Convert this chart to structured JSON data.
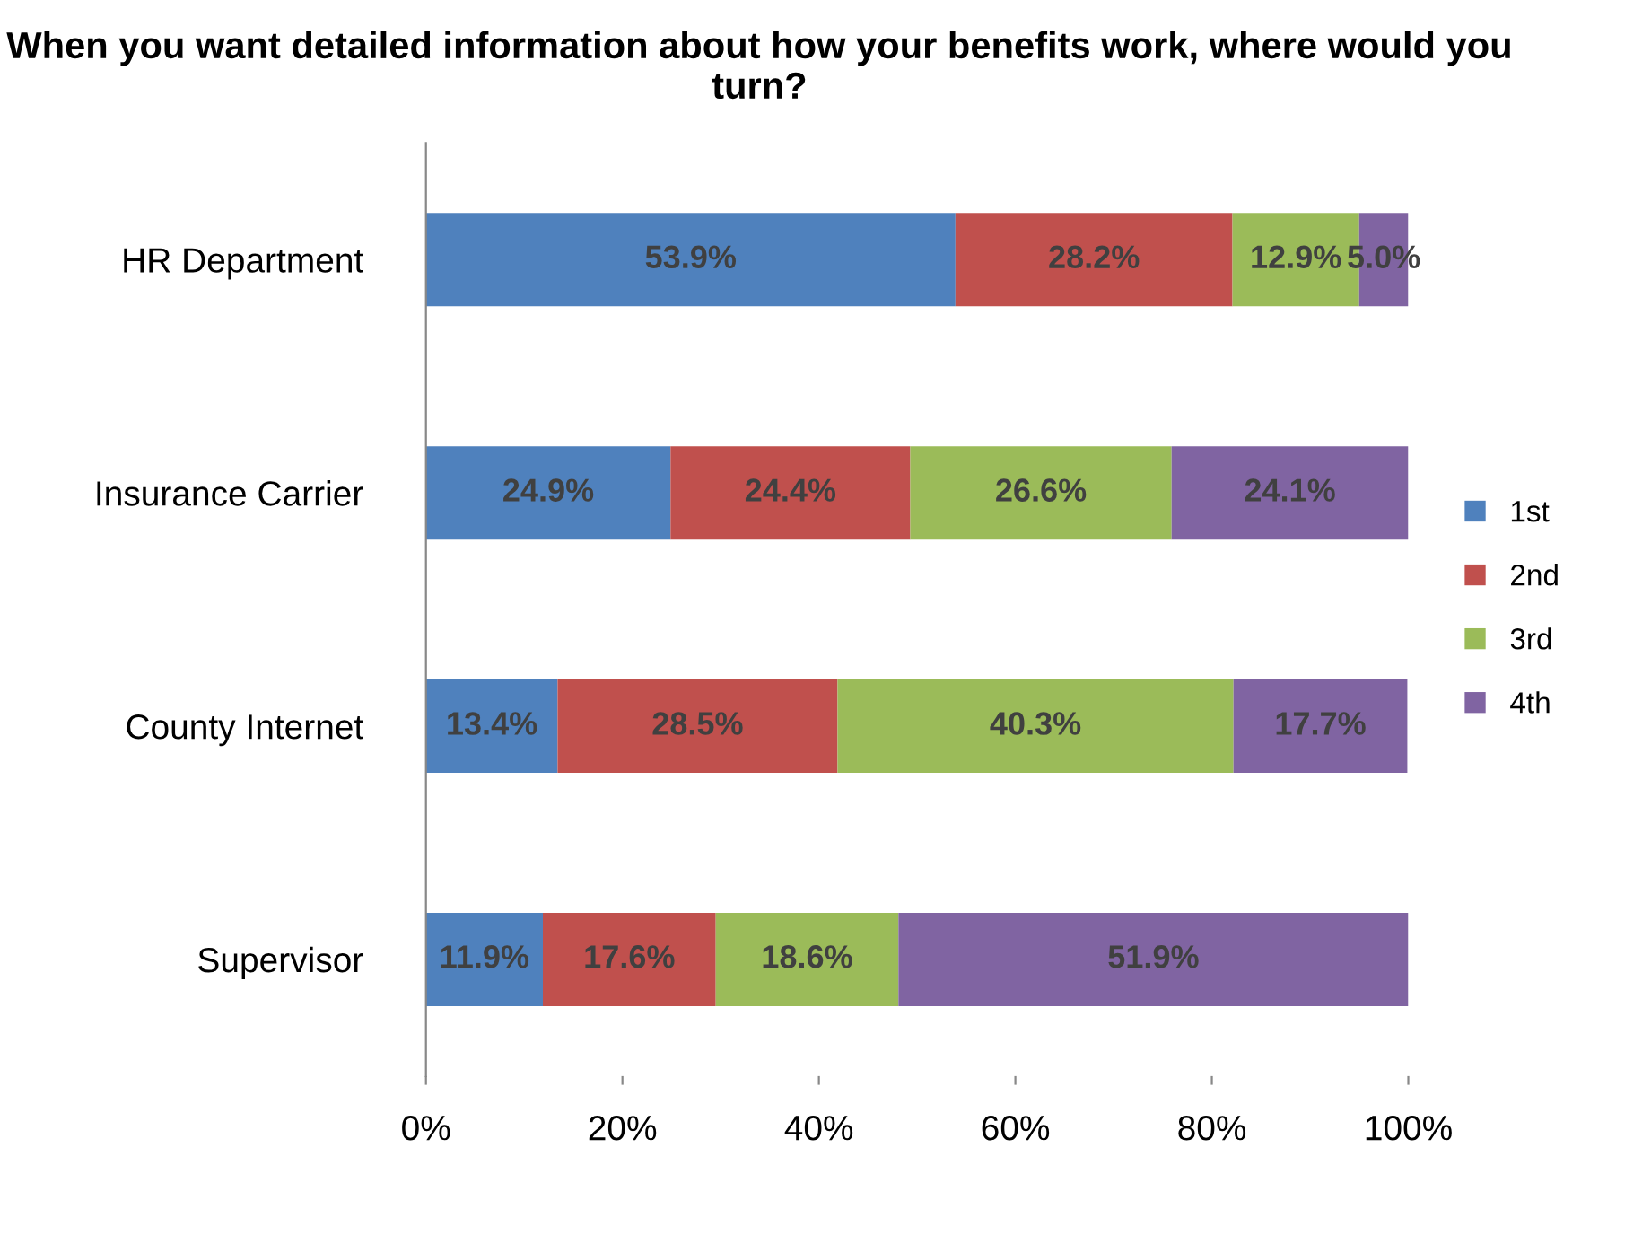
{
  "chart_data": {
    "type": "bar",
    "orientation": "horizontal",
    "stacked": true,
    "title": "When you want detailed information about how your benefits work, where would you turn?",
    "categories": [
      "HR Department",
      "Insurance Carrier",
      "County Internet",
      "Supervisor"
    ],
    "series": [
      {
        "name": "1st",
        "color": "#4f81bd",
        "values": [
          53.9,
          24.9,
          13.4,
          11.9
        ],
        "value_labels": [
          "53.9%",
          "24.9%",
          "13.4%",
          "11.9%"
        ]
      },
      {
        "name": "2nd",
        "color": "#c0504d",
        "values": [
          28.2,
          24.4,
          28.5,
          17.6
        ],
        "value_labels": [
          "28.2%",
          "24.4%",
          "28.5%",
          "17.6%"
        ]
      },
      {
        "name": "3rd",
        "color": "#9bbb59",
        "values": [
          12.9,
          26.6,
          40.3,
          18.6
        ],
        "value_labels": [
          "12.9%",
          "26.6%",
          "40.3%",
          "18.6%"
        ]
      },
      {
        "name": "4th",
        "color": "#8064a2",
        "values": [
          5.0,
          24.1,
          17.7,
          51.9
        ],
        "value_labels": [
          "5.0%",
          "24.1%",
          "17.7%",
          "51.9%"
        ]
      }
    ],
    "xlim": [
      0,
      100
    ],
    "xticks": [
      {
        "value": 0,
        "label": "0%"
      },
      {
        "value": 20,
        "label": "20%"
      },
      {
        "value": 40,
        "label": "40%"
      },
      {
        "value": 60,
        "label": "60%"
      },
      {
        "value": 80,
        "label": "80%"
      },
      {
        "value": 100,
        "label": "100%"
      }
    ],
    "grid": false,
    "legend": "right"
  }
}
